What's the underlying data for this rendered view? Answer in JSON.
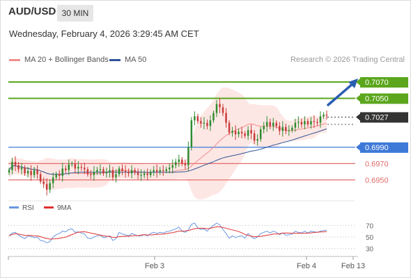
{
  "header": {
    "symbol": "AUD/USD",
    "timeframe": "30 MIN",
    "datetime": "Wednesday, February 4, 2026 3:29:45 AM CET",
    "copyright": "Research © 2026 Trading Central"
  },
  "colors": {
    "resistance": "#5ba61d",
    "current": "#333333",
    "pivot": "#3f79d8",
    "support": "#e26b6b",
    "ma20": "#f28d8d",
    "bollinger_fill": "#fde3df",
    "ma50": "#2f5597",
    "bull": "#2e8b2e",
    "bear": "#c83a3a",
    "rsi": "#6a96e0",
    "rsi_ma": "#e03030",
    "arrow": "#2a5db0"
  },
  "chart_data": [
    {
      "type": "candlestick",
      "legend": [
        {
          "label": "MA 20 + Bollinger Bands",
          "color": "#f28d8d"
        },
        {
          "label": "MA 50",
          "color": "#2f5597"
        }
      ],
      "ylim": [
        0.6932,
        0.7087
      ],
      "x_ticks": [
        "Feb 3",
        "Feb 4",
        "Feb 13"
      ],
      "levels": [
        {
          "value": 0.707,
          "label": "0.7070",
          "kind": "resistance"
        },
        {
          "value": 0.705,
          "label": "0.7050",
          "kind": "resistance"
        },
        {
          "value": 0.7027,
          "label": "0.7027",
          "kind": "current"
        },
        {
          "value": 0.699,
          "label": "0.6990",
          "kind": "pivot"
        },
        {
          "value": 0.697,
          "label": "0.6970",
          "kind": "support"
        },
        {
          "value": 0.695,
          "label": "0.6950",
          "kind": "support"
        }
      ],
      "closes": [
        0.6962,
        0.6972,
        0.6968,
        0.6963,
        0.6965,
        0.6958,
        0.6961,
        0.6956,
        0.6962,
        0.6957,
        0.6948,
        0.6945,
        0.6938,
        0.6946,
        0.6953,
        0.6957,
        0.6955,
        0.6964,
        0.6962,
        0.6969,
        0.697,
        0.6964,
        0.6966,
        0.6965,
        0.6963,
        0.6957,
        0.6956,
        0.696,
        0.6962,
        0.6963,
        0.6958,
        0.696,
        0.6962,
        0.6953,
        0.6957,
        0.6964,
        0.6961,
        0.696,
        0.6958,
        0.6962,
        0.6959,
        0.6956,
        0.6956,
        0.6958,
        0.6956,
        0.696,
        0.6962,
        0.696,
        0.6962,
        0.6961,
        0.6963,
        0.6965,
        0.6968,
        0.6972,
        0.6975,
        0.697,
        0.6968,
        0.699,
        0.7023,
        0.7028,
        0.7022,
        0.7019,
        0.702,
        0.7016,
        0.7023,
        0.7032,
        0.7043,
        0.7039,
        0.7032,
        0.702,
        0.7008,
        0.701,
        0.7006,
        0.7009,
        0.7007,
        0.7004,
        0.7011,
        0.7007,
        0.6998,
        0.7,
        0.7012,
        0.7016,
        0.7021,
        0.7016,
        0.702,
        0.7016,
        0.701,
        0.7015,
        0.701,
        0.7011,
        0.7014,
        0.702,
        0.7021,
        0.7018,
        0.7022,
        0.7018,
        0.7022,
        0.7021,
        0.702,
        0.7028,
        0.703,
        0.7029
      ]
    },
    {
      "type": "line",
      "legend": [
        {
          "label": "RSI",
          "color": "#6a96e0"
        },
        {
          "label": "9MA",
          "color": "#e03030"
        }
      ],
      "ylim": [
        20,
        80
      ],
      "y_ticks": [
        70,
        50,
        30
      ],
      "rsi": [
        52,
        57,
        58,
        53,
        50,
        47,
        52,
        51,
        49,
        50,
        44,
        43,
        40,
        42,
        50,
        54,
        56,
        60,
        59,
        63,
        64,
        58,
        59,
        57,
        55,
        48,
        47,
        50,
        52,
        53,
        49,
        50,
        52,
        44,
        47,
        58,
        55,
        54,
        52,
        56,
        54,
        52,
        52,
        54,
        52,
        56,
        58,
        56,
        58,
        57,
        59,
        60,
        62,
        64,
        67,
        60,
        58,
        62,
        72,
        74,
        66,
        63,
        64,
        60,
        66,
        70,
        74,
        71,
        63,
        56,
        48,
        52,
        49,
        51,
        52,
        48,
        56,
        51,
        47,
        50,
        56,
        58,
        60,
        57,
        60,
        58,
        54,
        57,
        53,
        54,
        55,
        60,
        58,
        57,
        60,
        57,
        60,
        59,
        58,
        60,
        61,
        62
      ]
    }
  ]
}
